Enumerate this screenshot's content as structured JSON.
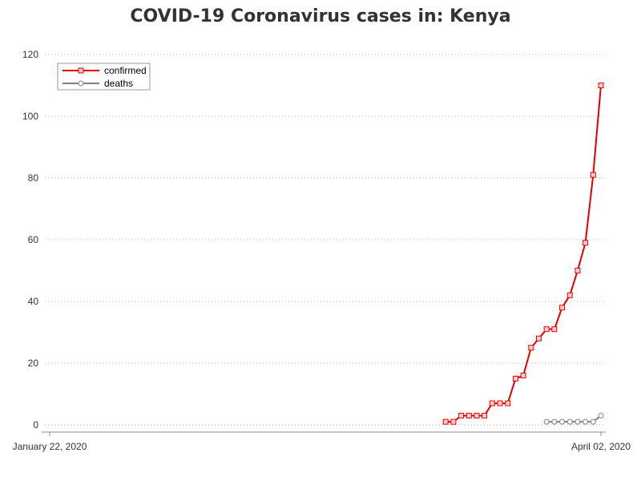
{
  "chart_data": {
    "type": "line",
    "title": "COVID-19 Coronavirus cases in: Kenya",
    "xlabel": "",
    "ylabel": "",
    "x_range": [
      "2020-01-22",
      "2020-04-02"
    ],
    "x_tick_labels": [
      "January 22, 2020",
      "April 02, 2020"
    ],
    "ylim": [
      0,
      120
    ],
    "y_ticks": [
      0,
      20,
      40,
      60,
      80,
      100,
      120
    ],
    "grid": "horizontal dotted",
    "legend_position": "top-left",
    "series": [
      {
        "name": "confirmed",
        "color": "#e00000",
        "marker": "square",
        "x": [
          "2020-03-13",
          "2020-03-14",
          "2020-03-15",
          "2020-03-16",
          "2020-03-17",
          "2020-03-18",
          "2020-03-19",
          "2020-03-20",
          "2020-03-21",
          "2020-03-22",
          "2020-03-23",
          "2020-03-24",
          "2020-03-25",
          "2020-03-26",
          "2020-03-27",
          "2020-03-28",
          "2020-03-29",
          "2020-03-30",
          "2020-03-31",
          "2020-04-01",
          "2020-04-02"
        ],
        "values": [
          1,
          1,
          3,
          3,
          3,
          3,
          7,
          7,
          7,
          15,
          16,
          25,
          28,
          31,
          31,
          38,
          42,
          50,
          59,
          81,
          110
        ]
      },
      {
        "name": "deaths",
        "color": "#808080",
        "marker": "circle",
        "x": [
          "2020-03-26",
          "2020-03-27",
          "2020-03-28",
          "2020-03-29",
          "2020-03-30",
          "2020-03-31",
          "2020-04-01",
          "2020-04-02"
        ],
        "values": [
          1,
          1,
          1,
          1,
          1,
          1,
          1,
          3
        ]
      }
    ]
  }
}
